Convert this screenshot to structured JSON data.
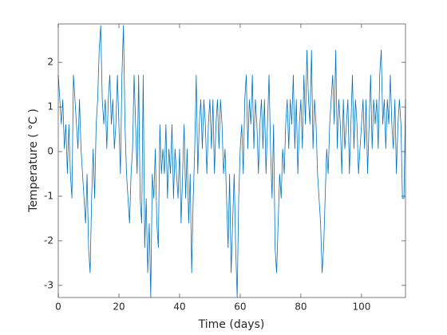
{
  "chart_data": {
    "type": "line",
    "xlabel": "Time (days)",
    "ylabel": "Temperature ( °C )",
    "color": "#0072bd",
    "xlim": [
      0,
      114.5
    ],
    "xticks": [
      0,
      20,
      40,
      60,
      80,
      100
    ],
    "ylim": [
      -3.27,
      2.86
    ],
    "yticks": [
      -3,
      -2,
      -1,
      0,
      1,
      2
    ],
    "x": [
      0,
      0.5,
      1,
      1.5,
      2,
      2.5,
      3,
      3.5,
      4,
      4.5,
      5,
      5.5,
      6,
      6.5,
      7,
      7.5,
      8,
      8.5,
      9,
      9.5,
      10,
      10.5,
      11,
      11.5,
      12,
      12.5,
      13,
      13.5,
      14,
      14.5,
      15,
      15.5,
      16,
      16.5,
      17,
      17.5,
      18,
      18.5,
      19,
      19.5,
      20,
      20.5,
      21,
      21.5,
      22,
      22.5,
      23,
      23.5,
      24,
      24.5,
      25,
      25.5,
      26,
      26.5,
      27,
      27.5,
      28,
      28.5,
      29,
      29.5,
      30,
      30.5,
      31,
      31.5,
      32,
      32.5,
      33,
      33.5,
      34,
      34.5,
      35,
      35.5,
      36,
      36.5,
      37,
      37.5,
      38,
      38.5,
      39,
      39.5,
      40,
      40.5,
      41,
      41.5,
      42,
      42.5,
      43,
      43.5,
      44,
      44.5,
      45,
      45.5,
      46,
      46.5,
      47,
      47.5,
      48,
      48.5,
      49,
      49.5,
      50,
      50.5,
      51,
      51.5,
      52,
      52.5,
      53,
      53.5,
      54,
      54.5,
      55,
      55.5,
      56,
      56.5,
      57,
      57.5,
      58,
      58.5,
      59,
      59.5,
      60,
      60.5,
      61,
      61.5,
      62,
      62.5,
      63,
      63.5,
      64,
      64.5,
      65,
      65.5,
      66,
      66.5,
      67,
      67.5,
      68,
      68.5,
      69,
      69.5,
      70,
      70.5,
      71,
      71.5,
      72,
      72.5,
      73,
      73.5,
      74,
      74.5,
      75,
      75.5,
      76,
      76.5,
      77,
      77.5,
      78,
      78.5,
      79,
      79.5,
      80,
      80.5,
      81,
      81.5,
      82,
      82.5,
      83,
      83.5,
      84,
      84.5,
      85,
      85.5,
      86,
      86.5,
      87,
      87.5,
      88,
      88.5,
      89,
      89.5,
      90,
      90.5,
      91,
      91.5,
      92,
      92.5,
      93,
      93.5,
      94,
      94.5,
      95,
      95.5,
      96,
      96.5,
      97,
      97.5,
      98,
      98.5,
      99,
      99.5,
      100,
      100.5,
      101,
      101.5,
      102,
      102.5,
      103,
      103.5,
      104,
      104.5,
      105,
      105.5,
      106,
      106.5,
      107,
      107.5,
      108,
      108.5,
      109,
      109.5,
      110,
      110.5,
      111,
      111.5,
      112,
      112.5,
      113,
      113.5,
      114,
      114.5
    ],
    "values": [
      1.72,
      1.17,
      0.61,
      1.17,
      0.06,
      0.61,
      -0.5,
      0.61,
      -0.5,
      -1.05,
      1.72,
      1.17,
      0.61,
      0.06,
      1.17,
      0.06,
      -0.5,
      -1.05,
      -1.61,
      -0.5,
      -2.16,
      -2.72,
      -1.05,
      0.06,
      -1.05,
      0.61,
      1.17,
      2.28,
      2.83,
      1.17,
      0.61,
      1.17,
      0.06,
      1.17,
      1.72,
      0.61,
      1.17,
      0.06,
      0.61,
      1.72,
      0.61,
      -0.5,
      1.72,
      2.83,
      0.61,
      -0.5,
      -1.05,
      -1.61,
      -0.5,
      0.06,
      1.72,
      0.61,
      -0.5,
      1.72,
      -1.05,
      -1.61,
      1.72,
      -2.16,
      -1.05,
      -2.72,
      -1.61,
      -3.27,
      -0.5,
      -1.05,
      0.06,
      -1.61,
      -2.16,
      0.61,
      -0.5,
      0.06,
      -0.5,
      0.61,
      -1.05,
      0.06,
      -0.5,
      0.61,
      -1.05,
      0.06,
      -0.5,
      -1.05,
      0.06,
      -1.61,
      -0.5,
      0.61,
      -1.05,
      0.06,
      -1.61,
      -0.5,
      -2.72,
      -1.05,
      0.06,
      1.72,
      -0.5,
      0.61,
      1.17,
      0.06,
      1.17,
      0.61,
      -0.5,
      0.61,
      1.17,
      0.06,
      1.17,
      -0.5,
      0.61,
      1.17,
      0.06,
      1.17,
      0.61,
      -0.5,
      0.06,
      -1.05,
      -2.16,
      -0.5,
      -2.72,
      -1.61,
      -0.5,
      -2.16,
      -3.27,
      -1.05,
      0.06,
      0.61,
      -0.5,
      1.17,
      1.72,
      0.06,
      1.17,
      0.61,
      1.72,
      0.06,
      1.17,
      0.61,
      -0.5,
      0.61,
      1.17,
      0.06,
      1.17,
      -0.5,
      0.61,
      1.72,
      0.06,
      -1.05,
      0.61,
      -2.16,
      -2.72,
      -1.61,
      -0.5,
      -1.05,
      0.06,
      -0.5,
      0.61,
      1.17,
      0.06,
      1.17,
      0.61,
      1.72,
      0.06,
      1.17,
      -0.5,
      0.61,
      1.17,
      0.06,
      1.72,
      0.61,
      2.28,
      1.17,
      0.61,
      2.28,
      0.06,
      1.17,
      0.61,
      -0.5,
      -1.05,
      -1.61,
      -2.72,
      -2.16,
      -1.05,
      0.06,
      -0.5,
      0.61,
      1.17,
      1.72,
      0.61,
      2.28,
      0.06,
      1.17,
      0.61,
      -0.5,
      1.17,
      0.06,
      0.61,
      1.17,
      -0.5,
      0.61,
      1.72,
      0.06,
      1.17,
      0.61,
      -0.5,
      0.06,
      0.61,
      1.17,
      0.06,
      1.17,
      -0.5,
      0.61,
      1.72,
      0.06,
      1.17,
      0.61,
      1.17,
      0.06,
      1.72,
      2.28,
      0.61,
      1.17,
      0.06,
      1.17,
      0.61,
      1.72,
      0.61,
      0.06,
      1.17,
      -0.5,
      0.61,
      1.17,
      0.61,
      -1.05,
      -1.05,
      1.17
    ]
  }
}
